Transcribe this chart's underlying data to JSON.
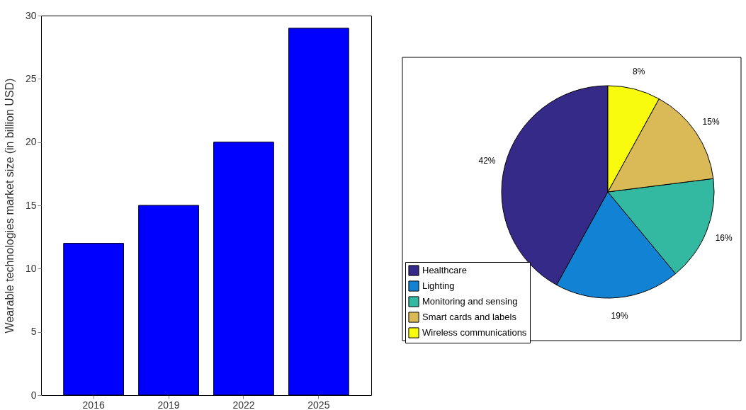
{
  "chart_data": [
    {
      "type": "bar",
      "ylabel": "Wearable technologies market size (in billion USD)",
      "categories": [
        "2016",
        "2019",
        "2022",
        "2025"
      ],
      "values": [
        12,
        15,
        20,
        29
      ],
      "color": "#0000ff",
      "ylim": [
        0,
        30
      ],
      "yticks": [
        0,
        5,
        10,
        15,
        20,
        25,
        30
      ]
    },
    {
      "type": "pie",
      "categories": [
        "Healthcare",
        "Lighting",
        "Monitoring and sensing",
        "Smart cards and labels",
        "Wireless communications"
      ],
      "values": [
        42,
        19,
        16,
        15,
        8
      ],
      "colors": [
        "#352a87",
        "#1283d4",
        "#33b8a1",
        "#d9ba56",
        "#f9fb0e"
      ],
      "value_labels": [
        "42%",
        "19%",
        "16%",
        "15%",
        "8%"
      ],
      "legend": "bottom left"
    }
  ]
}
